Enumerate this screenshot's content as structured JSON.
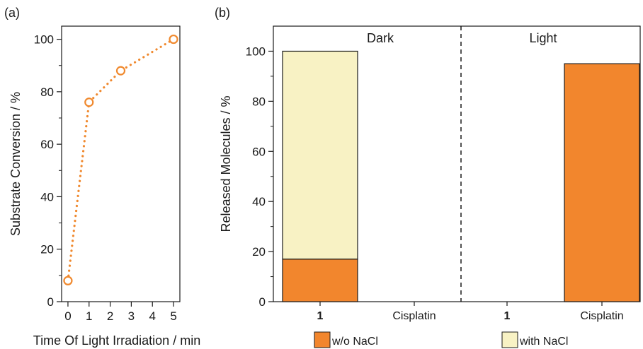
{
  "chart_data": [
    {
      "panel": "(a)",
      "type": "line",
      "xlabel": "Time Of Light Irradiation / min",
      "ylabel": "Substrate Conversion / %",
      "xlim": [
        -0.3,
        5.3
      ],
      "ylim": [
        0,
        105
      ],
      "xticks": [
        0,
        1,
        2,
        3,
        4,
        5
      ],
      "yticks": [
        0,
        20,
        40,
        60,
        80,
        100
      ],
      "x": [
        0,
        1,
        2.5,
        5
      ],
      "y": [
        8,
        76,
        88,
        100
      ],
      "line_style": "dotted",
      "marker": "open-circle",
      "color": "#f0892e",
      "grid": false
    },
    {
      "panel": "(b)",
      "type": "bar",
      "stacked": true,
      "ylabel": "Released Molecules / %",
      "ylim": [
        0,
        110
      ],
      "yticks": [
        0,
        20,
        40,
        60,
        80,
        100
      ],
      "regions": [
        "Dark",
        "Light"
      ],
      "categories": [
        "1",
        "Cisplatin",
        "1",
        "Cisplatin"
      ],
      "series": [
        {
          "name": "w/o NaCl",
          "color": "#f2862d",
          "values": [
            17,
            0,
            0,
            95
          ]
        },
        {
          "name": "with NaCl",
          "color": "#f8f2c4",
          "values": [
            83,
            0,
            0,
            0
          ]
        }
      ],
      "legend_position": "bottom",
      "grid": false
    }
  ]
}
